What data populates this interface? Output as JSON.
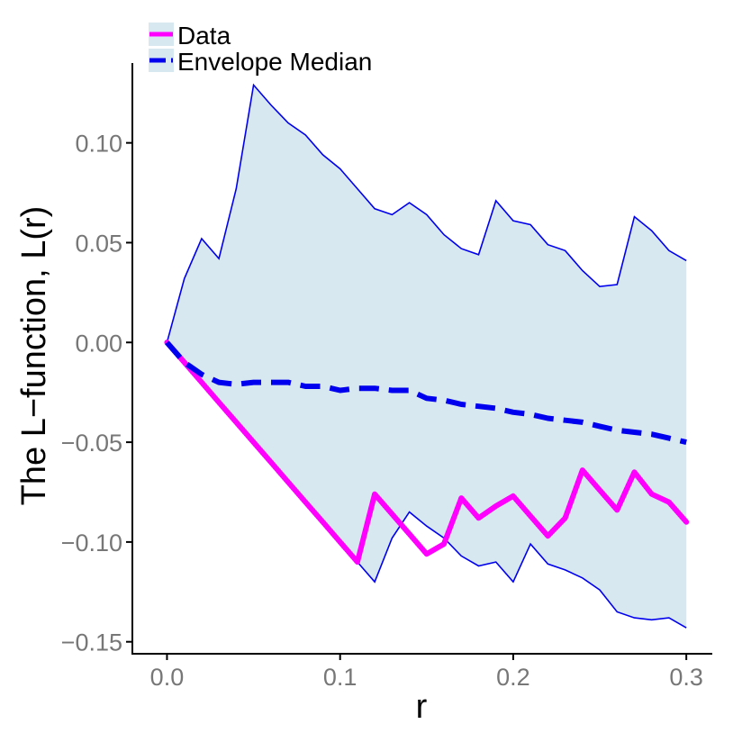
{
  "chart_data": {
    "type": "line",
    "xlabel": "r",
    "ylabel": "The L−function, L(r)",
    "xlim": [
      -0.02,
      0.315
    ],
    "ylim": [
      -0.156,
      0.14
    ],
    "xticks": [
      0.0,
      0.1,
      0.2,
      0.3
    ],
    "xtick_labels": [
      "0.0",
      "0.1",
      "0.2",
      "0.3"
    ],
    "yticks": [
      0.1,
      0.05,
      0.0,
      -0.05,
      -0.1,
      -0.15
    ],
    "ytick_labels": [
      "0.10",
      "0.05",
      "0.00",
      "−0.05",
      "−0.10",
      "−0.15"
    ],
    "grid": false,
    "legend_position": "top-left",
    "x": [
      0.0,
      0.01,
      0.02,
      0.03,
      0.04,
      0.05,
      0.06,
      0.07,
      0.08,
      0.09,
      0.1,
      0.11,
      0.12,
      0.13,
      0.14,
      0.15,
      0.16,
      0.17,
      0.18,
      0.19,
      0.2,
      0.21,
      0.22,
      0.23,
      0.24,
      0.25,
      0.26,
      0.27,
      0.28,
      0.29,
      0.3
    ],
    "envelope": {
      "fill_color": "#d8e8f1",
      "upper": [
        0.0,
        0.032,
        0.052,
        0.042,
        0.077,
        0.129,
        0.119,
        0.11,
        0.104,
        0.094,
        0.087,
        0.077,
        0.067,
        0.064,
        0.07,
        0.064,
        0.054,
        0.047,
        0.044,
        0.071,
        0.061,
        0.059,
        0.049,
        0.046,
        0.036,
        0.028,
        0.029,
        0.063,
        0.056,
        0.046,
        0.041
      ],
      "lower": [
        0.0,
        -0.01,
        -0.02,
        -0.03,
        -0.04,
        -0.05,
        -0.06,
        -0.07,
        -0.08,
        -0.09,
        -0.1,
        -0.11,
        -0.12,
        -0.098,
        -0.085,
        -0.092,
        -0.098,
        -0.107,
        -0.112,
        -0.11,
        -0.12,
        -0.101,
        -0.111,
        -0.114,
        -0.118,
        -0.124,
        -0.135,
        -0.138,
        -0.139,
        -0.138,
        -0.143
      ]
    },
    "series": [
      {
        "name": "Data",
        "color": "#ff00ff",
        "style": "solid",
        "values": [
          0.0,
          -0.01,
          -0.02,
          -0.03,
          -0.04,
          -0.05,
          -0.06,
          -0.07,
          -0.08,
          -0.09,
          -0.1,
          -0.11,
          -0.076,
          -0.086,
          -0.096,
          -0.106,
          -0.101,
          -0.078,
          -0.088,
          -0.082,
          -0.077,
          -0.087,
          -0.097,
          -0.088,
          -0.064,
          -0.074,
          -0.084,
          -0.065,
          -0.076,
          -0.08,
          -0.09
        ]
      },
      {
        "name": "Envelope Median",
        "color": "#0000ee",
        "style": "dashed",
        "values": [
          0.0,
          -0.01,
          -0.016,
          -0.02,
          -0.021,
          -0.02,
          -0.02,
          -0.02,
          -0.022,
          -0.022,
          -0.024,
          -0.023,
          -0.023,
          -0.024,
          -0.024,
          -0.028,
          -0.029,
          -0.031,
          -0.032,
          -0.033,
          -0.035,
          -0.036,
          -0.038,
          -0.039,
          -0.04,
          -0.042,
          -0.044,
          -0.045,
          -0.046,
          -0.048,
          -0.05
        ]
      }
    ]
  }
}
